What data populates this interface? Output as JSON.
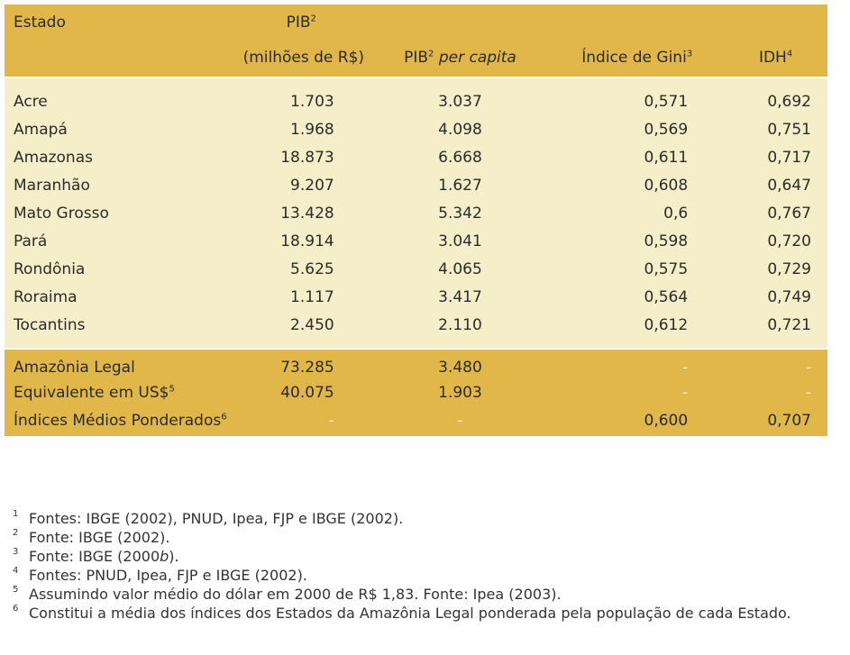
{
  "header": {
    "estado": "Estado",
    "pib": "PIB",
    "pib_sup": "2",
    "pib_unit": "(milhões de R$)",
    "pib_pc": "PIB",
    "pib_pc_sup": "2",
    "pib_pc_suffix": "per capita",
    "gini": "Índice de Gini",
    "gini_sup": "3",
    "idh": "IDH",
    "idh_sup": "4"
  },
  "rows": [
    {
      "estado": "Acre",
      "pib": "1.703",
      "pib_pc": "3.037",
      "gini": "0,571",
      "idh": "0,692"
    },
    {
      "estado": "Amapá",
      "pib": "1.968",
      "pib_pc": "4.098",
      "gini": "0,569",
      "idh": "0,751"
    },
    {
      "estado": "Amazonas",
      "pib": "18.873",
      "pib_pc": "6.668",
      "gini": "0,611",
      "idh": "0,717"
    },
    {
      "estado": "Maranhão",
      "pib": "9.207",
      "pib_pc": "1.627",
      "gini": "0,608",
      "idh": "0,647"
    },
    {
      "estado": "Mato Grosso",
      "pib": "13.428",
      "pib_pc": "5.342",
      "gini": "0,6",
      "idh": "0,767"
    },
    {
      "estado": "Pará",
      "pib": "18.914",
      "pib_pc": "3.041",
      "gini": "0,598",
      "idh": "0,720"
    },
    {
      "estado": "Rondônia",
      "pib": "5.625",
      "pib_pc": "4.065",
      "gini": "0,575",
      "idh": "0,729"
    },
    {
      "estado": "Roraima",
      "pib": "1.117",
      "pib_pc": "3.417",
      "gini": "0,564",
      "idh": "0,749"
    },
    {
      "estado": "Tocantins",
      "pib": "2.450",
      "pib_pc": "2.110",
      "gini": "0,612",
      "idh": "0,721"
    }
  ],
  "totals": [
    {
      "estado": "Amazônia Legal",
      "sup": "",
      "pib": "73.285",
      "pib_pc": "3.480",
      "gini": "-",
      "idh": "-"
    },
    {
      "estado": "Equivalente em US$",
      "sup": "5",
      "pib": "40.075",
      "pib_pc": "1.903",
      "gini": "-",
      "idh": "-"
    },
    {
      "estado": "Índices Médios Ponderados",
      "sup": "6",
      "pib": "-",
      "pib_pc": "-",
      "gini": "0,600",
      "idh": "0,707"
    }
  ],
  "footnotes": [
    {
      "n": "1",
      "text": "Fontes: IBGE (2002), PNUD, Ipea, FJP e IBGE (2002)."
    },
    {
      "n": "2",
      "text": "Fonte: IBGE (2002)."
    },
    {
      "n": "3",
      "text_pre": "Fonte: IBGE (2000",
      "text_italic": "b",
      "text_post": ")."
    },
    {
      "n": "4",
      "text": "Fontes: PNUD, Ipea, FJP e IBGE (2002)."
    },
    {
      "n": "5",
      "text": "Assumindo valor médio do dólar em 2000 de R$ 1,83. Fonte: Ipea (2003)."
    },
    {
      "n": "6",
      "text": "Constitui a média dos índices dos Estados da Amazônia Legal ponderada pela população de cada Estado."
    }
  ],
  "colors": {
    "header_bg": "#e2b74a",
    "body_bg": "#f6edc9"
  }
}
